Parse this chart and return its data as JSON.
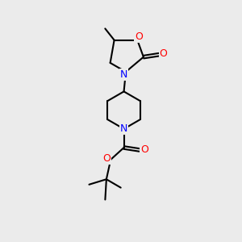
{
  "bg_color": "#ebebeb",
  "bond_color": "#000000",
  "N_color": "#0000ff",
  "O_color": "#ff0000",
  "line_width": 1.5,
  "figsize": [
    3.0,
    3.0
  ],
  "dpi": 100,
  "xlim": [
    0,
    10
  ],
  "ylim": [
    0,
    10
  ]
}
